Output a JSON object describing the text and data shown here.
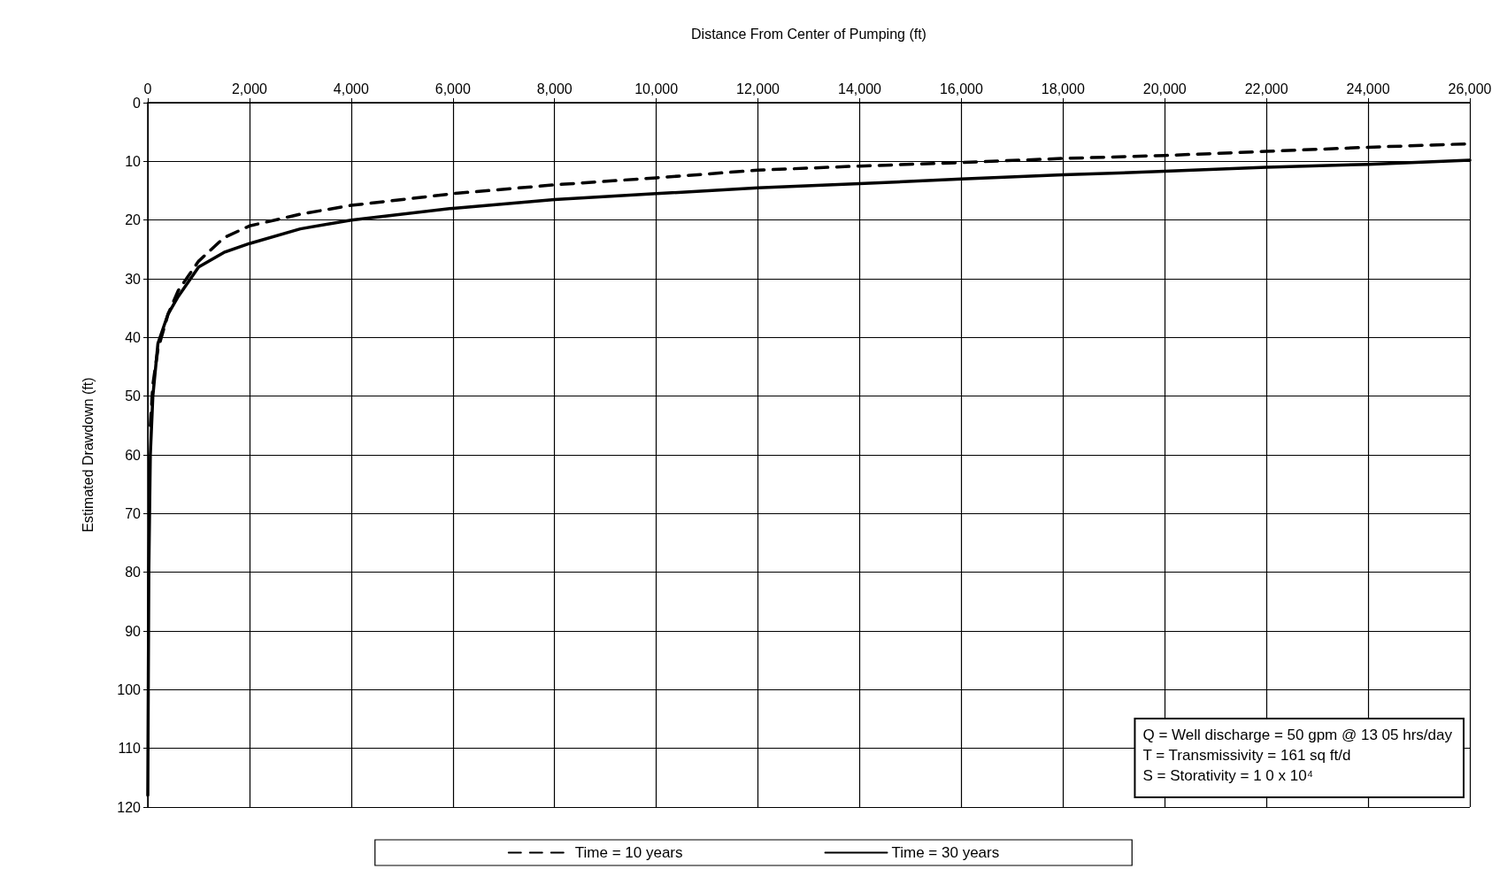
{
  "chart_data": {
    "type": "line",
    "xlabel": "Distance From Center of Pumping (ft)",
    "ylabel": "Estimated Drawdown (ft)",
    "xlim": [
      0,
      26000
    ],
    "xticks": [
      0,
      {
        "value": 2000,
        "label": "2,000"
      },
      {
        "value": 4000,
        "label": "4,000"
      },
      {
        "value": 6000,
        "label": "6,000"
      },
      {
        "value": 8000,
        "label": "8,000"
      },
      {
        "value": 10000,
        "label": "10,000"
      },
      {
        "value": 12000,
        "label": "12,000"
      },
      {
        "value": 14000,
        "label": "14,000"
      },
      {
        "value": 16000,
        "label": "16,000"
      },
      {
        "value": 18000,
        "label": "18,000"
      },
      {
        "value": 20000,
        "label": "20,000"
      },
      {
        "value": 22000,
        "label": "22,000"
      },
      {
        "value": 24000,
        "label": "24,000"
      },
      {
        "value": 26000,
        "label": "26,000"
      }
    ],
    "ylim": [
      120,
      0
    ],
    "yticks": [
      0,
      10,
      20,
      30,
      40,
      50,
      60,
      70,
      80,
      90,
      100,
      110,
      120
    ],
    "grid": true,
    "legend": "bottom",
    "marker": "none",
    "series": [
      {
        "name": "Time = 10 years",
        "color": "#000000",
        "line_style": "dashed",
        "x": [
          50,
          100,
          200,
          400,
          600,
          1000,
          1500,
          2000,
          3000,
          4000,
          6000,
          8000,
          10000,
          12000,
          14000,
          16000,
          18000,
          20000,
          22000,
          24000,
          26000
        ],
        "values": [
          55,
          48,
          42,
          36,
          32,
          27,
          23,
          21,
          19,
          17.5,
          15.5,
          14,
          12.8,
          11.5,
          10.8,
          10.2,
          9.5,
          9,
          8.3,
          7.6,
          7
        ]
      },
      {
        "name": "Time = 30 years",
        "color": "#000000",
        "line_style": "solid",
        "x": [
          0,
          20,
          50,
          100,
          200,
          400,
          600,
          1000,
          1500,
          2000,
          3000,
          4000,
          6000,
          8000,
          10000,
          12000,
          14000,
          16000,
          18000,
          20000,
          22000,
          24000,
          26000
        ],
        "values": [
          118,
          80,
          60,
          50,
          41,
          36,
          33,
          28,
          25.5,
          24,
          21.5,
          20,
          18,
          16.5,
          15.5,
          14.5,
          13.8,
          13,
          12.3,
          11.7,
          11,
          10.5,
          9.8
        ]
      }
    ],
    "annotations": [
      "Q = Well discharge = 50 gpm @ 13 05 hrs/day",
      "T = Transmissivity = 161 sq ft/d",
      "S = Storativity = 1 0 x 10⁴"
    ]
  }
}
